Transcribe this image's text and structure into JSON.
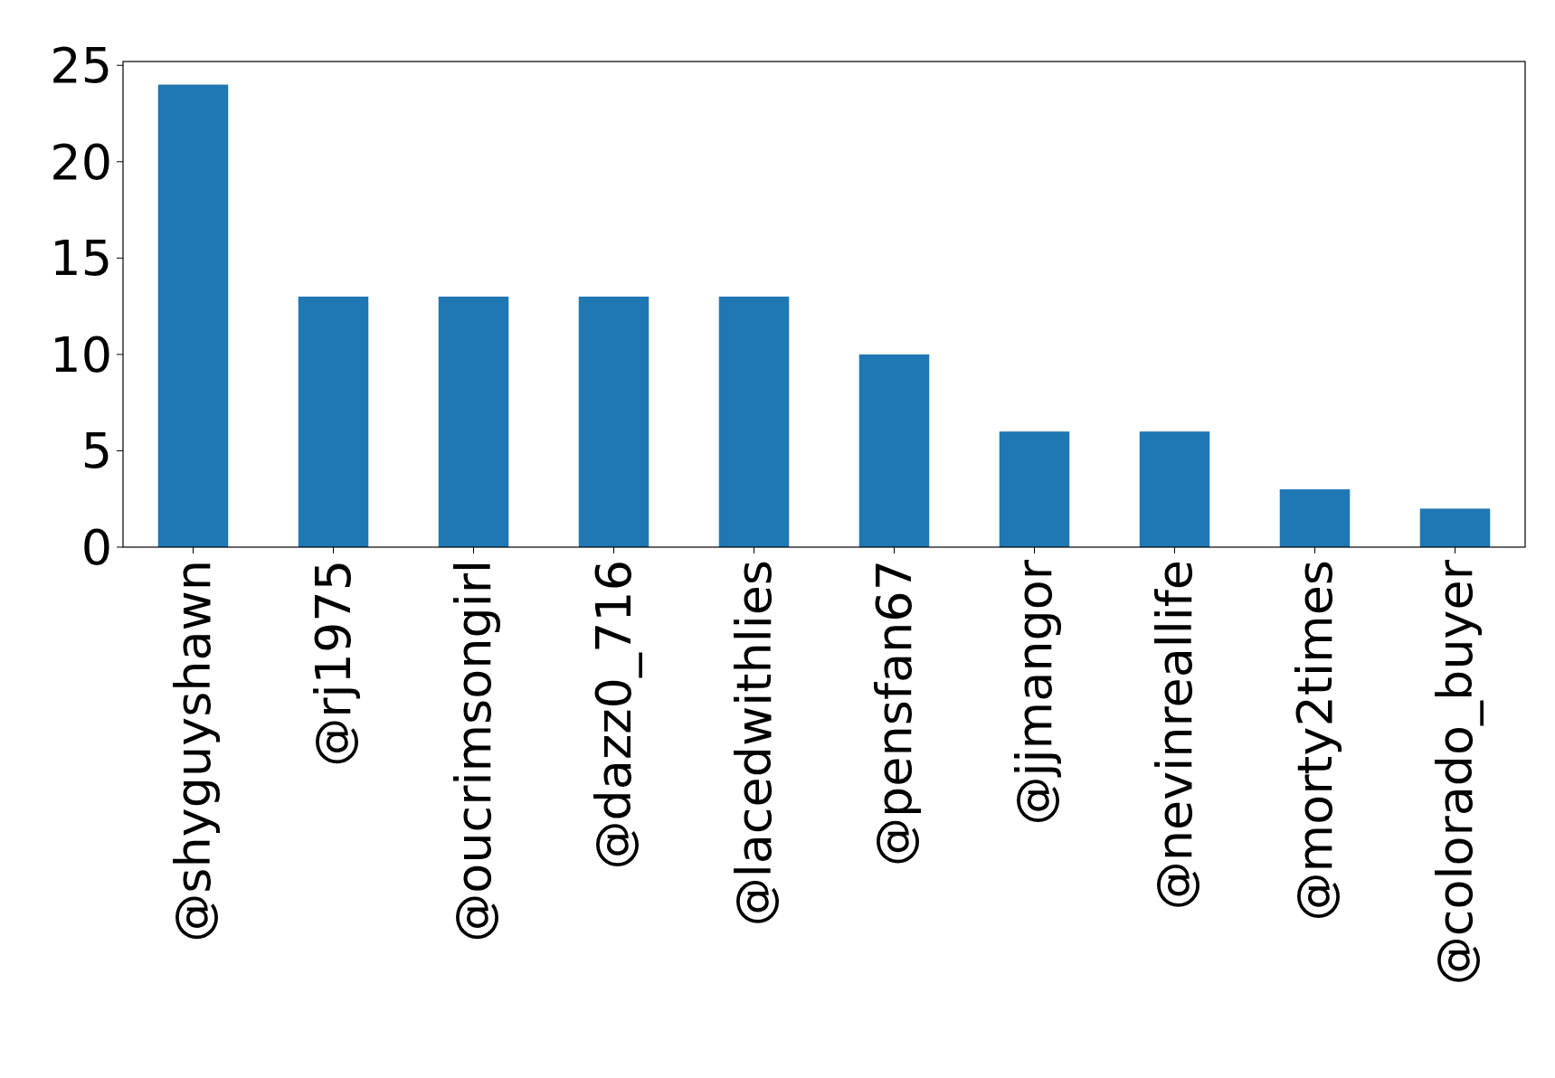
{
  "chart_data": {
    "type": "bar",
    "categories": [
      "@shyguyshawn",
      "@rj1975",
      "@oucrimsongirl",
      "@dazz0_716",
      "@lacedwithlies",
      "@pensfan67",
      "@jjmangor",
      "@nevinreallife",
      "@morty2times",
      "@colorado_buyer"
    ],
    "values": [
      24,
      13,
      13,
      13,
      13,
      10,
      6,
      6,
      3,
      2
    ],
    "color": "#1f77b4",
    "ylim": [
      0,
      25.2
    ],
    "yticks": [
      0,
      5,
      10,
      15,
      20,
      25
    ],
    "grid": false
  }
}
